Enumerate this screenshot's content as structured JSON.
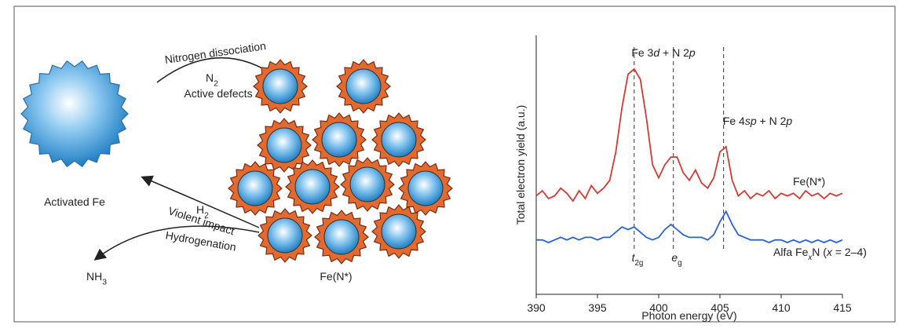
{
  "diagram": {
    "activated": {
      "parts": [
        {
          "text": "Activated Fe"
        }
      ]
    },
    "nitrogen": {
      "parts": [
        {
          "text": "Nitrogen dissociation"
        }
      ]
    },
    "n2": {
      "parts": [
        {
          "text": "N"
        },
        {
          "text": "2",
          "sub": true
        }
      ]
    },
    "defects": {
      "parts": [
        {
          "text": "Active defects"
        }
      ]
    },
    "h2": {
      "parts": [
        {
          "text": "H"
        },
        {
          "text": "2",
          "sub": true
        }
      ]
    },
    "impact": {
      "parts": [
        {
          "text": "Violent impact"
        }
      ]
    },
    "hydrogenation": {
      "parts": [
        {
          "text": "Hydrogenation"
        }
      ]
    },
    "nh3": {
      "parts": [
        {
          "text": "NH"
        },
        {
          "text": "3",
          "sub": true
        }
      ]
    },
    "product": {
      "parts": [
        {
          "text": "Fe(N*)"
        }
      ]
    }
  },
  "chart_data": {
    "type": "line",
    "xlabel": "Photon energy (eV)",
    "ylabel": "Total electron yield (a.u.)",
    "x": [
      390,
      390.5,
      391,
      391.5,
      392,
      392.5,
      393,
      393.5,
      394,
      394.5,
      395,
      395.5,
      396,
      396.5,
      397,
      397.5,
      398,
      398.5,
      399,
      399.5,
      400,
      400.5,
      401,
      401.5,
      402,
      402.5,
      403,
      403.5,
      404,
      404.5,
      405,
      405.5,
      406,
      406.5,
      407,
      407.5,
      408,
      408.5,
      409,
      409.5,
      410,
      410.5,
      411,
      411.5,
      412,
      412.5,
      413,
      413.5,
      414,
      414.5,
      415
    ],
    "xlim": [
      390,
      415
    ],
    "xticks": [
      390,
      395,
      400,
      405,
      410,
      415
    ],
    "ylim": [
      0,
      100
    ],
    "series": [
      {
        "name": {
          "parts": [
            {
              "text": "Fe(N*)"
            }
          ]
        },
        "color": "#d43a34",
        "values": [
          38,
          40,
          37,
          38,
          41,
          39,
          36,
          40,
          37,
          42,
          39,
          41,
          44,
          55,
          72,
          85,
          87,
          83,
          68,
          50,
          45,
          50,
          53,
          53,
          47,
          44,
          48,
          43,
          41,
          45,
          55,
          57,
          44,
          38,
          40,
          37,
          39,
          38,
          40,
          37,
          39,
          38,
          39,
          37,
          40,
          38,
          39,
          37,
          39,
          38,
          39
        ]
      },
      {
        "name": {
          "parts": [
            {
              "text": "Alfa Fe"
            },
            {
              "text": "x",
              "sub": true,
              "italic": true
            },
            {
              "text": "N ("
            },
            {
              "text": "x",
              "italic": true
            },
            {
              "text": " = 2–4)"
            }
          ]
        },
        "color": "#2a62d6",
        "values": [
          21,
          21,
          20,
          21,
          22,
          21,
          22,
          21,
          22,
          22,
          21,
          22,
          22,
          24,
          26,
          25,
          26,
          24,
          22,
          21,
          22,
          25,
          27,
          25,
          23,
          22,
          22,
          22,
          21,
          23,
          28,
          32,
          27,
          23,
          22,
          21,
          21,
          21,
          20,
          21,
          21,
          20,
          21,
          20,
          21,
          20,
          21,
          20,
          21,
          20,
          21
        ]
      }
    ],
    "vlines": [
      398,
      401.2,
      405.3
    ],
    "annotations": [
      {
        "parts": [
          {
            "text": "Fe 3"
          },
          {
            "text": "d",
            "italic": true
          },
          {
            "text": " + N 2"
          },
          {
            "text": "p",
            "italic": true
          }
        ]
      },
      {
        "parts": [
          {
            "text": "Fe 4"
          },
          {
            "text": "sp",
            "italic": true
          },
          {
            "text": " + N 2"
          },
          {
            "text": "p",
            "italic": true
          }
        ]
      },
      {
        "parts": [
          {
            "text": "t",
            "italic": true
          },
          {
            "text": "2g",
            "sub": true
          }
        ]
      },
      {
        "parts": [
          {
            "text": "e",
            "italic": true
          },
          {
            "text": "g",
            "sub": true
          }
        ]
      }
    ]
  }
}
